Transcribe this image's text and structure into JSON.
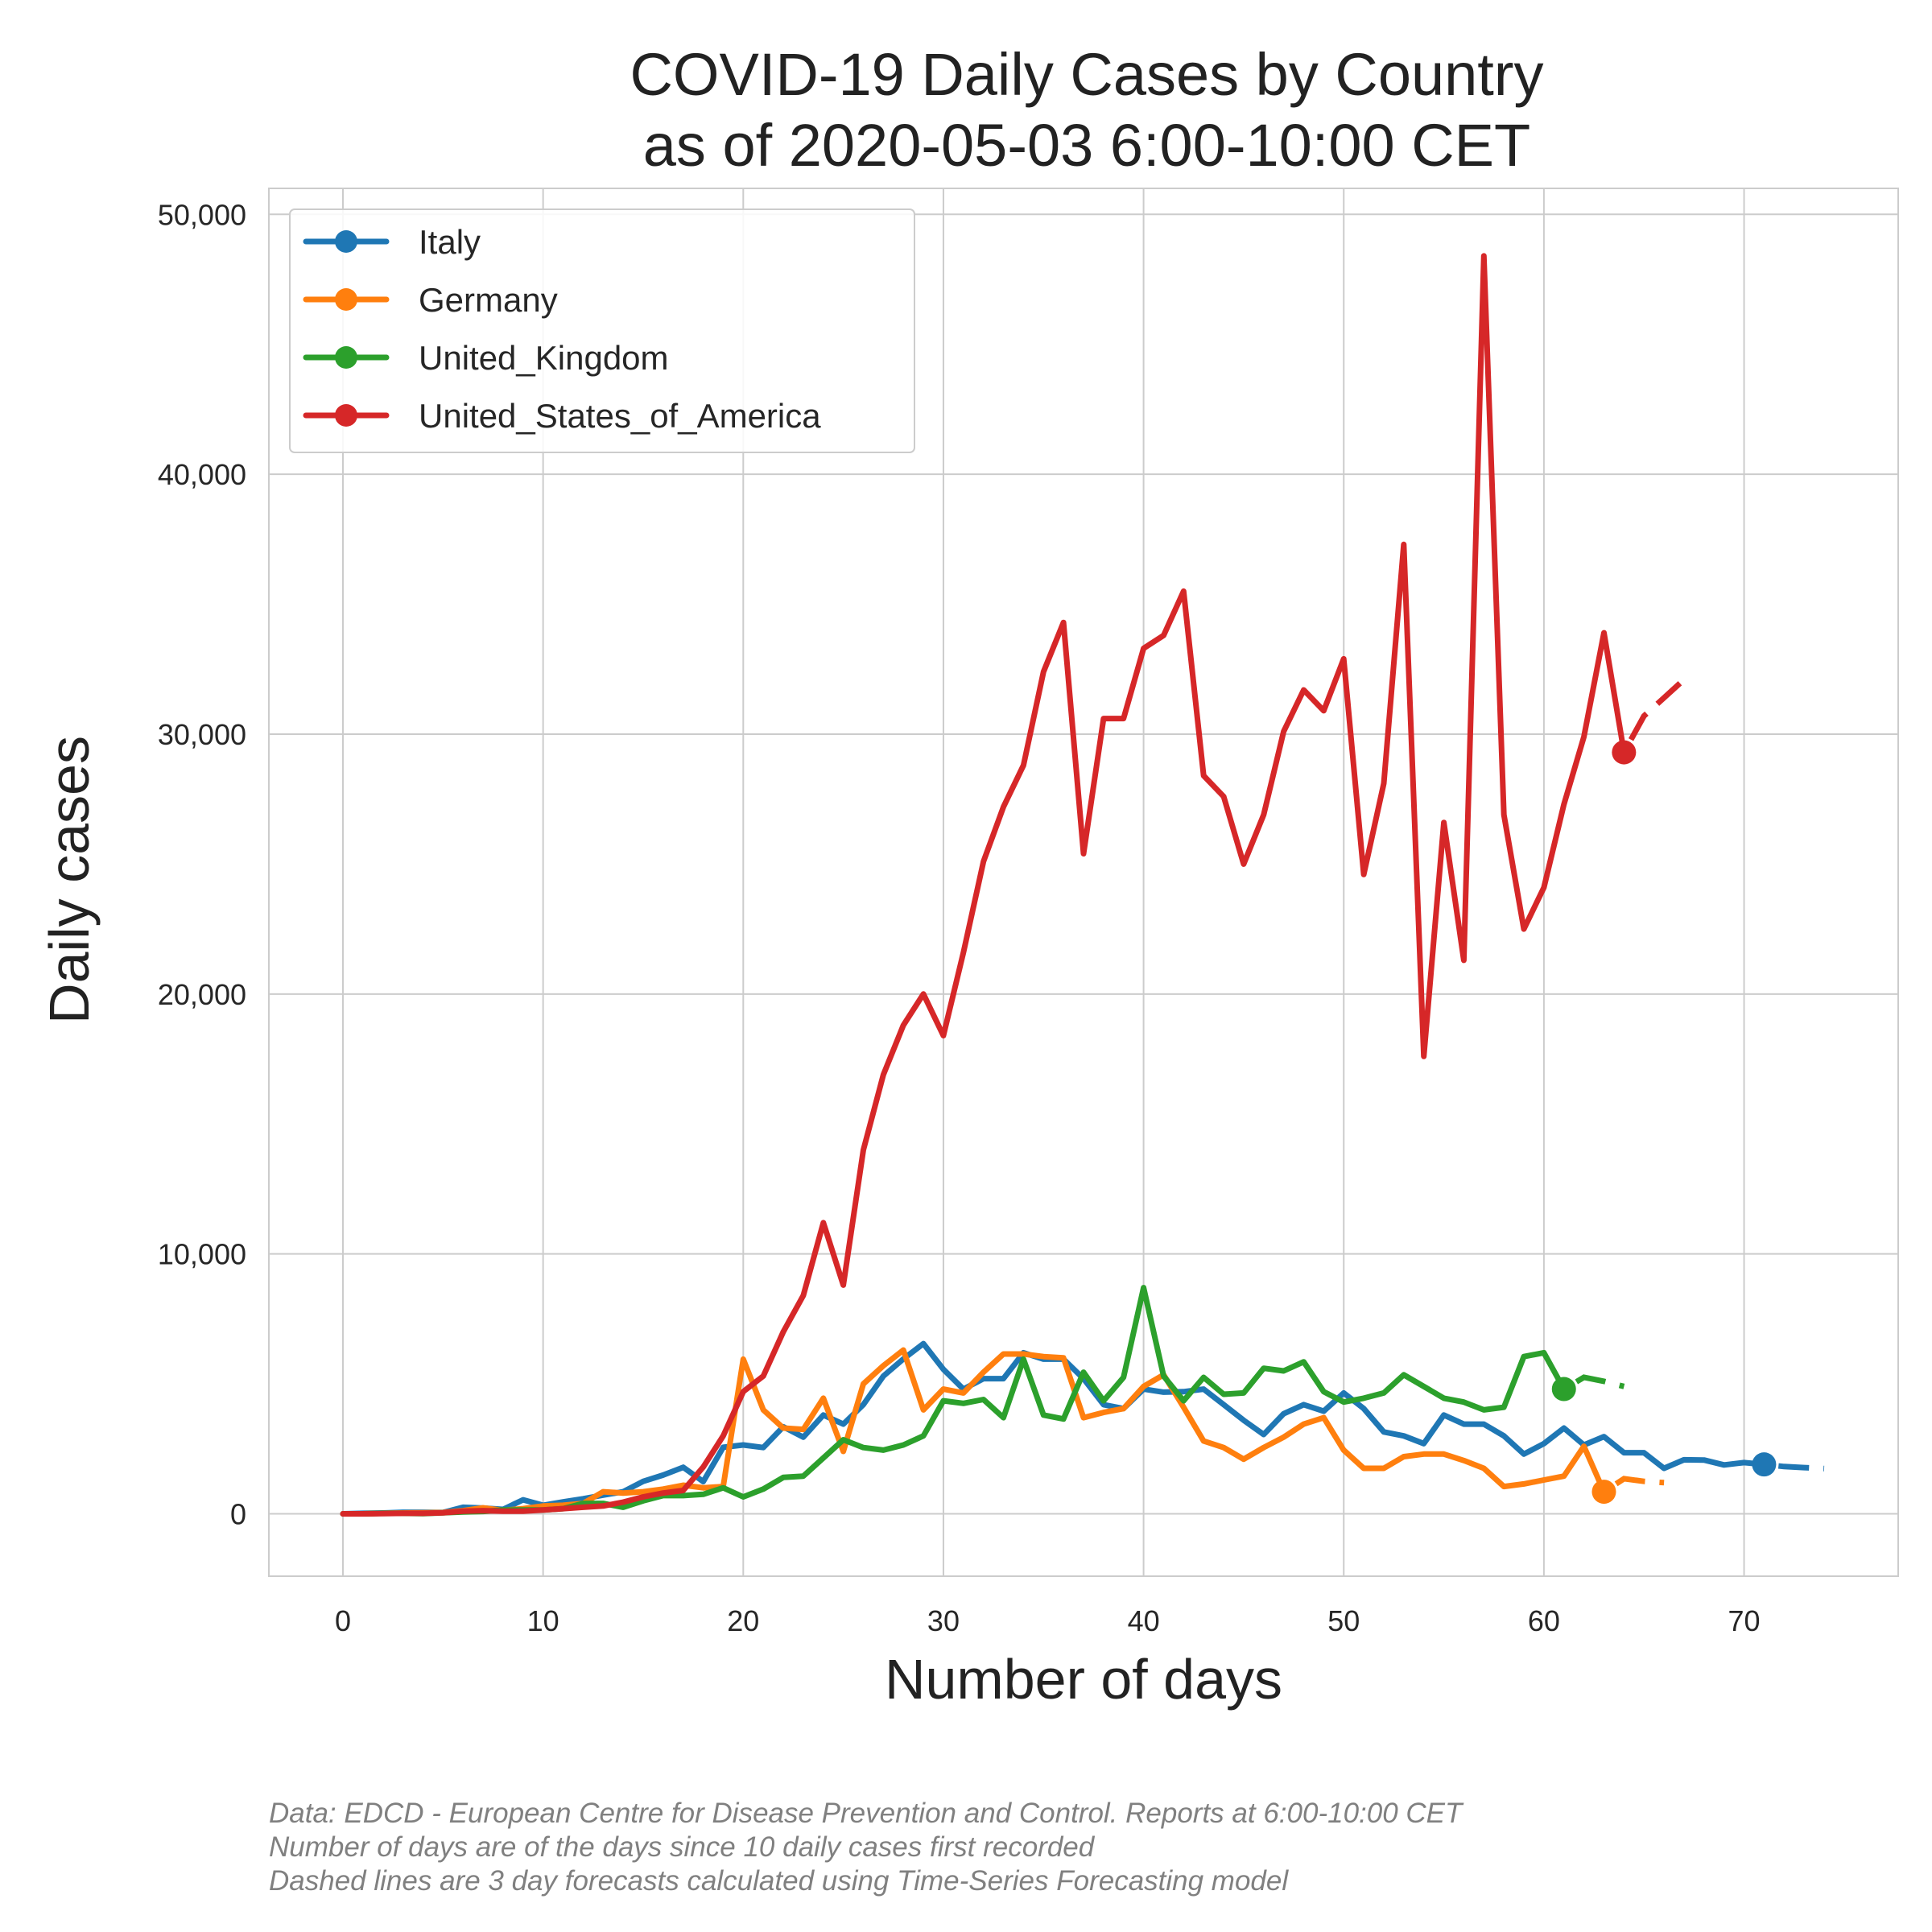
{
  "chart_data": {
    "type": "line",
    "title": [
      "COVID-19 Daily Cases by Country",
      "as of 2020-05-03 6:00-10:00 CET"
    ],
    "xlabel": "Number of days",
    "ylabel": "Daily cases",
    "xlim": [
      -3.7,
      77.7
    ],
    "ylim": [
      -2400,
      51000
    ],
    "xticks": [
      0,
      10,
      20,
      30,
      40,
      50,
      60,
      70
    ],
    "yticks": [
      0,
      10000,
      20000,
      30000,
      40000,
      50000
    ],
    "ytick_labels": [
      "0",
      "10,000",
      "20,000",
      "30,000",
      "40,000",
      "50,000"
    ],
    "grid": true,
    "legend_position": "top-left",
    "series": [
      {
        "name": "Italy",
        "color": "#1f77b4",
        "values": [
          0,
          20,
          30,
          60,
          60,
          50,
          250,
          220,
          170,
          540,
          330,
          460,
          580,
          720,
          850,
          1250,
          1490,
          1790,
          1240,
          2560,
          2650,
          2550,
          3350,
          2950,
          3800,
          3450,
          4200,
          5300,
          5960,
          6550,
          5560,
          4800,
          5200,
          5200,
          6200,
          5950,
          5950,
          5200,
          4200,
          4050,
          4800,
          4680,
          4700,
          4800,
          4200,
          3600,
          3050,
          3850,
          4200,
          3950,
          4650,
          4050,
          3150,
          3000,
          2700,
          3800,
          3450,
          3450,
          3000,
          2300,
          2700,
          3300,
          2650,
          2970,
          2350,
          2350,
          1750,
          2080,
          2070,
          1880,
          1970,
          1900
        ],
        "forecast_x": [
          71,
          72,
          73,
          74
        ],
        "forecast": [
          1900,
          1820,
          1780,
          1740
        ]
      },
      {
        "name": "Germany",
        "color": "#ff7f0e",
        "values": [
          0,
          0,
          20,
          30,
          40,
          50,
          120,
          230,
          130,
          200,
          300,
          330,
          400,
          850,
          800,
          850,
          950,
          1100,
          1000,
          1050,
          5950,
          4000,
          3300,
          3250,
          4450,
          2400,
          5000,
          5700,
          6300,
          4000,
          4800,
          4650,
          5450,
          6150,
          6150,
          6050,
          6000,
          3700,
          3900,
          4050,
          4900,
          5350,
          4100,
          2800,
          2550,
          2100,
          2550,
          2950,
          3450,
          3700,
          2450,
          1750,
          1750,
          2200,
          2300,
          2300,
          2050,
          1750,
          1050,
          1150,
          1300,
          1450,
          2600,
          850
        ],
        "forecast_x": [
          63,
          64,
          65,
          66
        ],
        "forecast": [
          850,
          1350,
          1250,
          1200
        ]
      },
      {
        "name": "United_Kingdom",
        "color": "#2ca02c",
        "values": [
          0,
          0,
          20,
          20,
          10,
          40,
          70,
          90,
          150,
          150,
          150,
          200,
          400,
          400,
          250,
          500,
          700,
          700,
          750,
          1000,
          650,
          950,
          1400,
          1450,
          2150,
          2850,
          2550,
          2450,
          2650,
          3000,
          4350,
          4250,
          4400,
          3700,
          5950,
          3800,
          3650,
          5450,
          4350,
          5250,
          8700,
          5300,
          4350,
          5250,
          4600,
          4650,
          5600,
          5500,
          5850,
          4700,
          4300,
          4450,
          4650,
          5350,
          4900,
          4450,
          4300,
          4000,
          4100,
          6050,
          6200,
          4800
        ],
        "forecast_x": [
          61,
          62,
          63,
          64
        ],
        "forecast": [
          4800,
          5250,
          5100,
          4900
        ]
      },
      {
        "name": "United_States_of_America",
        "color": "#d62728",
        "values": [
          0,
          0,
          10,
          20,
          20,
          40,
          100,
          120,
          100,
          100,
          150,
          200,
          250,
          300,
          450,
          650,
          800,
          900,
          1800,
          3000,
          4700,
          5300,
          7000,
          8400,
          11200,
          8800,
          14000,
          16900,
          18800,
          20000,
          18400,
          21600,
          25100,
          27200,
          28800,
          32400,
          34300,
          25400,
          30600,
          30600,
          33300,
          33800,
          35500,
          28400,
          27600,
          25000,
          26900,
          30100,
          31700,
          30900,
          32900,
          24600,
          28100,
          37300,
          17600,
          26600,
          21300,
          48400,
          26900,
          22500,
          24100,
          27300,
          29900,
          33900,
          29300
        ],
        "forecast_x": [
          64,
          65,
          66,
          67
        ],
        "forecast": [
          29300,
          30700,
          31400,
          32100
        ]
      }
    ],
    "footnotes": [
      "Data: EDCD - European Centre for Disease Prevention and Control. Reports at 6:00-10:00 CET",
      "Number of days are of the days since 10 daily cases first recorded",
      "Dashed lines are 3 day forecasts calculated using Time-Series Forecasting model"
    ]
  }
}
